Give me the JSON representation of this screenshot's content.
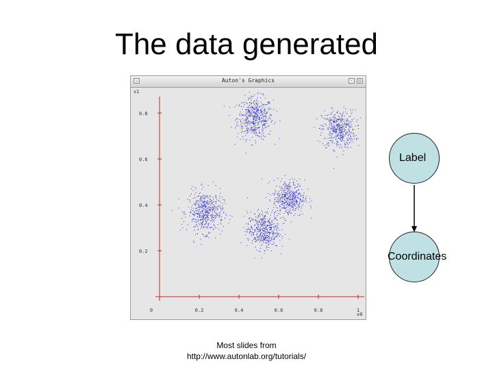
{
  "slide": {
    "title": "The data generated",
    "footer_line1": "Most slides from",
    "footer_line2": "http://www.autonlab.org/tutorials/"
  },
  "window": {
    "title": "Auton's Graphics"
  },
  "colors": {
    "points": "#2a2acc",
    "axes": "#cc2222",
    "node_fill": "#bfe1e4",
    "node_stroke": "#222222"
  },
  "diagram": {
    "nodes": [
      {
        "id": "label",
        "text": "Label"
      },
      {
        "id": "coords",
        "text": "Coordinates"
      }
    ],
    "edges": [
      {
        "from": "label",
        "to": "coords"
      }
    ]
  },
  "chart_data": {
    "type": "scatter",
    "title": "",
    "xlabel": "x0",
    "ylabel": "x1",
    "xlim": [
      0,
      1.05
    ],
    "ylim": [
      0,
      0.9
    ],
    "x_ticks": [
      {
        "v": 0.2,
        "label": "0.2"
      },
      {
        "v": 0.4,
        "label": "0.4"
      },
      {
        "v": 0.6,
        "label": "0.6"
      },
      {
        "v": 0.8,
        "label": "0.8"
      },
      {
        "v": 1.0,
        "label": "1"
      }
    ],
    "x_zero_label": "0",
    "y_ticks": [
      {
        "v": 0.2,
        "label": "0.2"
      },
      {
        "v": 0.4,
        "label": "0.4"
      },
      {
        "v": 0.6,
        "label": "0.6"
      },
      {
        "v": 0.8,
        "label": "0.8"
      }
    ],
    "grid": false,
    "legend": "none",
    "clusters": [
      {
        "center": [
          0.48,
          0.78
        ],
        "spread": 0.045,
        "n": 520
      },
      {
        "center": [
          0.9,
          0.73
        ],
        "spread": 0.042,
        "n": 460
      },
      {
        "center": [
          0.23,
          0.37
        ],
        "spread": 0.045,
        "n": 520
      },
      {
        "center": [
          0.65,
          0.43
        ],
        "spread": 0.04,
        "n": 460
      },
      {
        "center": [
          0.52,
          0.29
        ],
        "spread": 0.04,
        "n": 460
      }
    ]
  }
}
